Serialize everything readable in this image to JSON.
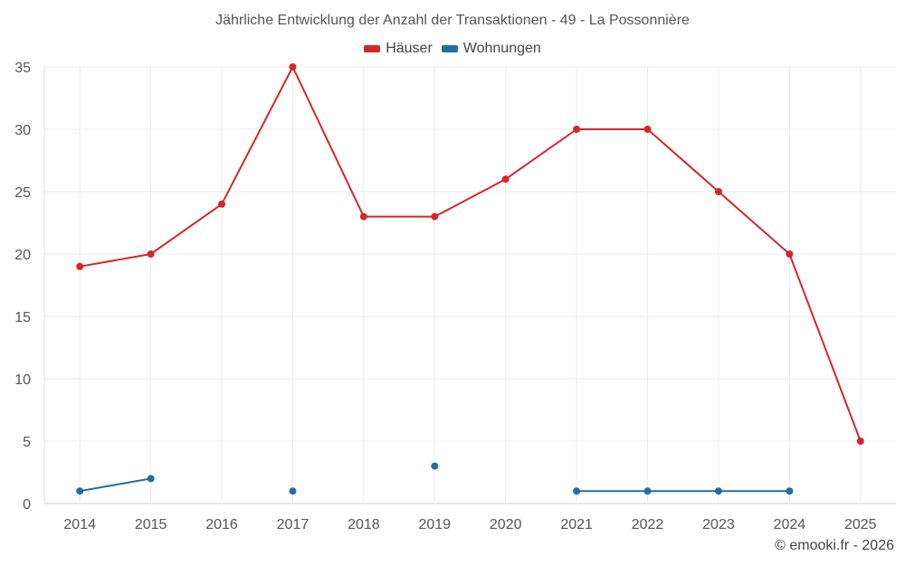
{
  "chart_data": {
    "type": "line",
    "title": "Jährliche Entwicklung der Anzahl der Transaktionen - 49 - La Possonnière",
    "categories": [
      "2014",
      "2015",
      "2016",
      "2017",
      "2018",
      "2019",
      "2020",
      "2021",
      "2022",
      "2023",
      "2024",
      "2025"
    ],
    "ylim": [
      0,
      35
    ],
    "yticks": [
      0,
      5,
      10,
      15,
      20,
      25,
      30,
      35
    ],
    "grid": true,
    "legend_position": "top-center",
    "series": [
      {
        "name": "Häuser",
        "color": "#d62728",
        "values": [
          19,
          20,
          24,
          35,
          23,
          23,
          26,
          30,
          30,
          25,
          20,
          5
        ]
      },
      {
        "name": "Wohnungen",
        "color": "#1f6fa3",
        "values": [
          1,
          2,
          null,
          1,
          null,
          3,
          null,
          1,
          1,
          1,
          1,
          null
        ]
      }
    ]
  },
  "credit": "© emooki.fr - 2026"
}
